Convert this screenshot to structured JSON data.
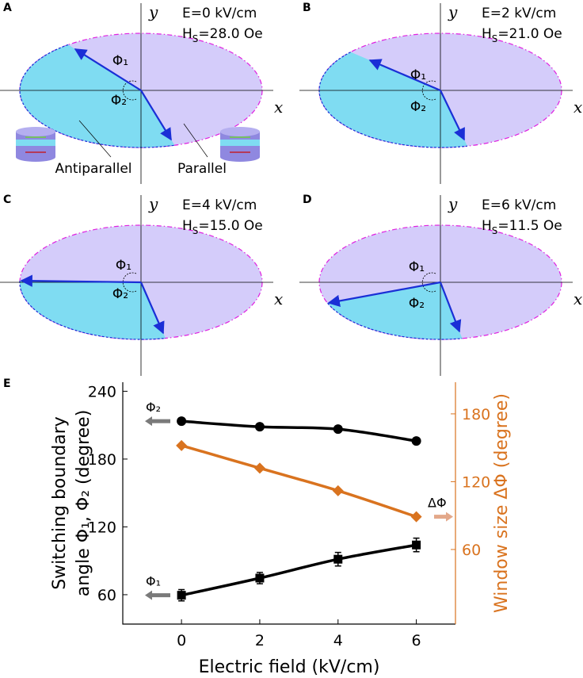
{
  "panels": [
    {
      "label": "A",
      "field": "E=0 kV/cm",
      "h": "H",
      "h_sub": "S",
      "h_value": "=28.0 Oe",
      "axis_x": "x",
      "axis_y": "y",
      "phi1": "Φ₁",
      "phi2": "Φ₂",
      "left_note": "Antiparallel",
      "right_note": "Parallel"
    },
    {
      "label": "B",
      "field": "E=2 kV/cm",
      "h": "H",
      "h_sub": "S",
      "h_value": "=21.0 Oe",
      "axis_x": "x",
      "axis_y": "y",
      "phi1": "Φ₁",
      "phi2": "Φ₂"
    },
    {
      "label": "C",
      "field": "E=4 kV/cm",
      "h": "H",
      "h_sub": "S",
      "h_value": "=15.0 Oe",
      "axis_x": "x",
      "axis_y": "y",
      "phi1": "Φ₁",
      "phi2": "Φ₂"
    },
    {
      "label": "D",
      "field": "E=6 kV/cm",
      "h": "H",
      "h_sub": "S",
      "h_value": "=11.5 Oe",
      "axis_x": "x",
      "axis_y": "y",
      "phi1": "Φ₁",
      "phi2": "Φ₂"
    }
  ],
  "chart_data": {
    "type": "line",
    "label": "E",
    "x_label": "Electric field (kV/cm)",
    "y_label": [
      "Switching boundary",
      "angle Φ₁, Φ₂ (degree)"
    ],
    "y2_label": "Window size ΔΦ (degree)",
    "x": [
      0,
      2,
      4,
      6
    ],
    "xlim": [
      -1.5,
      7
    ],
    "xticks": [
      0,
      2,
      4,
      6
    ],
    "ylim": [
      34,
      248
    ],
    "yticks": [
      60,
      120,
      180,
      240
    ],
    "y2lim": [
      -6,
      208
    ],
    "y2ticks": [
      60,
      120,
      180
    ],
    "series": [
      {
        "name": "Φ₂",
        "color": "#000000",
        "marker": "circle",
        "values": [
          213.5,
          208.6,
          206.5,
          196
        ]
      },
      {
        "name": "Φ₁",
        "color": "#000000",
        "marker": "square",
        "values": [
          59.5,
          74.7,
          91.4,
          104
        ],
        "errors": [
          5,
          5,
          6,
          6
        ]
      },
      {
        "name": "ΔΦ",
        "color": "#d9731f",
        "marker": "diamond",
        "axis": "y2",
        "values": [
          152,
          132,
          112,
          89
        ]
      }
    ]
  }
}
